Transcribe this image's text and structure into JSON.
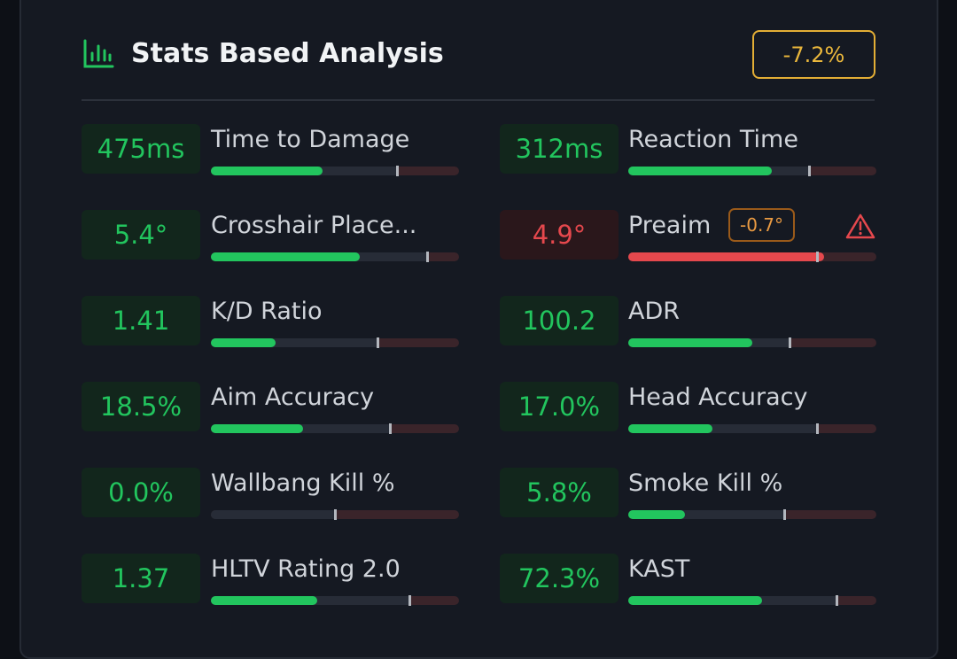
{
  "header": {
    "title": "Stats Based Analysis",
    "badge": "-7.2%"
  },
  "stats": [
    {
      "value": "475ms",
      "label": "Time to Damage",
      "fill": 45,
      "marker": 75,
      "color": "#22c55e"
    },
    {
      "value": "312ms",
      "label": "Reaction Time",
      "fill": 58,
      "marker": 73,
      "color": "#22c55e"
    },
    {
      "value": "5.4°",
      "label": "Crosshair Place...",
      "fill": 60,
      "marker": 87,
      "color": "#22c55e"
    },
    {
      "value": "4.9°",
      "label": "Preaim",
      "delta": "-0.7°",
      "fill": 79,
      "marker": 76,
      "color": "#e5484d"
    },
    {
      "value": "1.41",
      "label": "K/D Ratio",
      "fill": 26,
      "marker": 67,
      "color": "#22c55e"
    },
    {
      "value": "100.2",
      "label": "ADR",
      "fill": 50,
      "marker": 65,
      "color": "#22c55e"
    },
    {
      "value": "18.5%",
      "label": "Aim Accuracy",
      "fill": 37,
      "marker": 72,
      "color": "#22c55e"
    },
    {
      "value": "17.0%",
      "label": "Head Accuracy",
      "fill": 34,
      "marker": 76,
      "color": "#22c55e"
    },
    {
      "value": "0.0%",
      "label": "Wallbang Kill %",
      "fill": 0,
      "marker": 50,
      "color": "#22c55e"
    },
    {
      "value": "5.8%",
      "label": "Smoke Kill %",
      "fill": 23,
      "marker": 63,
      "color": "#22c55e"
    },
    {
      "value": "1.37",
      "label": "HLTV Rating 2.0",
      "fill": 43,
      "marker": 80,
      "color": "#22c55e"
    },
    {
      "value": "72.3%",
      "label": "KAST",
      "fill": 54,
      "marker": 84,
      "color": "#22c55e"
    }
  ]
}
